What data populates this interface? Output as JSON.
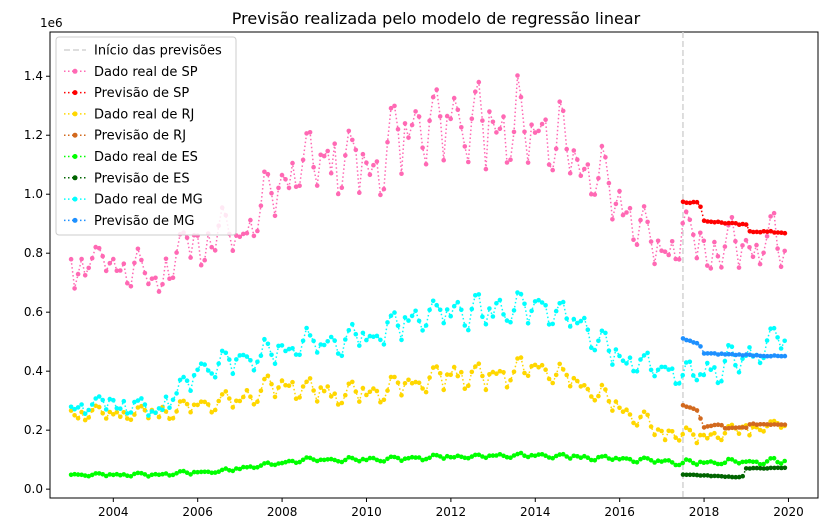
{
  "chart_data": {
    "type": "line",
    "title": "Previsão realizada pelo modelo de regressão linear",
    "y_offset_label": "1e6",
    "xlim": [
      2002.5,
      2020.7
    ],
    "ylim": [
      -0.03,
      1.55
    ],
    "x_ticks": [
      2004,
      2006,
      2008,
      2010,
      2012,
      2014,
      2016,
      2018,
      2020
    ],
    "y_ticks": [
      0.0,
      0.2,
      0.4,
      0.6,
      0.8,
      1.0,
      1.2,
      1.4
    ],
    "y_tick_labels": [
      "0.0",
      "0.2",
      "0.4",
      "0.6",
      "0.8",
      "1.0",
      "1.2",
      "1.4"
    ],
    "vline": {
      "label": "Início das previsões",
      "x": 2017.5,
      "color": "#d3d3d3"
    },
    "legend_placement": "upper-left",
    "series": [
      {
        "name": "Dado real de SP",
        "color": "#ff69b4",
        "start": 2003.0,
        "step": 0.0833,
        "anchors": [
          [
            2003.0,
            0.78
          ],
          [
            2004.0,
            0.78
          ],
          [
            2005.0,
            0.72
          ],
          [
            2006.0,
            0.88
          ],
          [
            2007.0,
            0.88
          ],
          [
            2008.0,
            1.05
          ],
          [
            2009.0,
            1.15
          ],
          [
            2010.0,
            1.1
          ],
          [
            2011.0,
            1.22
          ],
          [
            2012.0,
            1.28
          ],
          [
            2013.0,
            1.25
          ],
          [
            2014.0,
            1.25
          ],
          [
            2015.0,
            1.12
          ],
          [
            2016.0,
            0.98
          ],
          [
            2017.0,
            0.8
          ],
          [
            2017.5,
            0.88
          ],
          [
            2018.5,
            0.83
          ],
          [
            2019.5,
            0.86
          ],
          [
            2019.92,
            0.82
          ]
        ],
        "amp": [
          [
            2003.0,
            0.05
          ],
          [
            2007.0,
            0.09
          ],
          [
            2009.0,
            0.12
          ],
          [
            2013.0,
            0.16
          ],
          [
            2015.0,
            0.13
          ],
          [
            2017.0,
            0.08
          ],
          [
            2019.92,
            0.09
          ]
        ],
        "dip": 0.12
      },
      {
        "name": "Previsão de SP",
        "color": "#ff0000",
        "start": 2017.5,
        "step": 0.0833,
        "anchors": [
          [
            2017.5,
            0.975
          ],
          [
            2017.9,
            0.97
          ],
          [
            2018.0,
            0.91
          ],
          [
            2019.0,
            0.895
          ],
          [
            2019.05,
            0.875
          ],
          [
            2019.92,
            0.87
          ]
        ],
        "amp": [
          [
            2017.5,
            0.006
          ],
          [
            2019.92,
            0.006
          ]
        ],
        "dip": 0
      },
      {
        "name": "Dado real de RJ",
        "color": "#ffd700",
        "start": 2003.0,
        "step": 0.0833,
        "anchors": [
          [
            2003.0,
            0.26
          ],
          [
            2005.0,
            0.26
          ],
          [
            2007.0,
            0.31
          ],
          [
            2008.0,
            0.36
          ],
          [
            2009.0,
            0.33
          ],
          [
            2010.0,
            0.33
          ],
          [
            2011.0,
            0.36
          ],
          [
            2012.0,
            0.39
          ],
          [
            2013.0,
            0.39
          ],
          [
            2014.0,
            0.41
          ],
          [
            2015.0,
            0.37
          ],
          [
            2016.0,
            0.28
          ],
          [
            2017.0,
            0.2
          ],
          [
            2018.0,
            0.18
          ],
          [
            2019.0,
            0.21
          ],
          [
            2019.92,
            0.22
          ]
        ],
        "amp": [
          [
            2003.0,
            0.025
          ],
          [
            2008.0,
            0.04
          ],
          [
            2013.0,
            0.05
          ],
          [
            2016.0,
            0.03
          ],
          [
            2019.92,
            0.02
          ]
        ],
        "dip": 0.03
      },
      {
        "name": "Previsão de RJ",
        "color": "#d2691e",
        "start": 2017.5,
        "step": 0.0833,
        "anchors": [
          [
            2017.5,
            0.285
          ],
          [
            2017.85,
            0.265
          ],
          [
            2018.0,
            0.21
          ],
          [
            2018.4,
            0.22
          ],
          [
            2018.5,
            0.205
          ],
          [
            2019.0,
            0.21
          ],
          [
            2019.1,
            0.22
          ],
          [
            2019.92,
            0.22
          ]
        ],
        "amp": [
          [
            2017.5,
            0.004
          ],
          [
            2019.92,
            0.004
          ]
        ],
        "dip": 0
      },
      {
        "name": "Dado real de ES",
        "color": "#00ff00",
        "start": 2003.0,
        "step": 0.0833,
        "anchors": [
          [
            2003.0,
            0.05
          ],
          [
            2005.0,
            0.05
          ],
          [
            2006.5,
            0.06
          ],
          [
            2007.5,
            0.08
          ],
          [
            2008.5,
            0.1
          ],
          [
            2010.0,
            0.1
          ],
          [
            2012.0,
            0.11
          ],
          [
            2014.0,
            0.115
          ],
          [
            2015.0,
            0.11
          ],
          [
            2016.5,
            0.1
          ],
          [
            2017.5,
            0.09
          ],
          [
            2019.92,
            0.095
          ]
        ],
        "amp": [
          [
            2003.0,
            0.006
          ],
          [
            2019.92,
            0.01
          ]
        ],
        "dip": 0.005
      },
      {
        "name": "Previsão de ES",
        "color": "#006400",
        "start": 2017.5,
        "step": 0.0833,
        "anchors": [
          [
            2017.5,
            0.05
          ],
          [
            2018.9,
            0.04
          ],
          [
            2019.0,
            0.07
          ],
          [
            2019.92,
            0.072
          ]
        ],
        "amp": [
          [
            2017.5,
            0.002
          ],
          [
            2019.92,
            0.002
          ]
        ],
        "dip": 0
      },
      {
        "name": "Dado real de MG",
        "color": "#00ffff",
        "start": 2003.0,
        "step": 0.0833,
        "anchors": [
          [
            2003.0,
            0.28
          ],
          [
            2004.0,
            0.3
          ],
          [
            2005.0,
            0.27
          ],
          [
            2006.0,
            0.4
          ],
          [
            2007.0,
            0.44
          ],
          [
            2008.0,
            0.48
          ],
          [
            2009.0,
            0.5
          ],
          [
            2010.0,
            0.52
          ],
          [
            2011.0,
            0.58
          ],
          [
            2012.0,
            0.6
          ],
          [
            2013.0,
            0.6
          ],
          [
            2014.0,
            0.62
          ],
          [
            2015.0,
            0.58
          ],
          [
            2016.0,
            0.45
          ],
          [
            2017.0,
            0.4
          ],
          [
            2018.0,
            0.4
          ],
          [
            2019.0,
            0.45
          ],
          [
            2019.92,
            0.52
          ]
        ],
        "amp": [
          [
            2003.0,
            0.03
          ],
          [
            2008.0,
            0.05
          ],
          [
            2014.0,
            0.07
          ],
          [
            2016.0,
            0.05
          ],
          [
            2019.92,
            0.06
          ]
        ],
        "dip": 0.04
      },
      {
        "name": "Previsão de MG",
        "color": "#1e90ff",
        "start": 2017.5,
        "step": 0.0833,
        "anchors": [
          [
            2017.5,
            0.51
          ],
          [
            2017.9,
            0.49
          ],
          [
            2018.0,
            0.46
          ],
          [
            2019.0,
            0.455
          ],
          [
            2019.92,
            0.45
          ]
        ],
        "amp": [
          [
            2017.5,
            0.004
          ],
          [
            2019.92,
            0.004
          ]
        ],
        "dip": 0
      }
    ]
  }
}
